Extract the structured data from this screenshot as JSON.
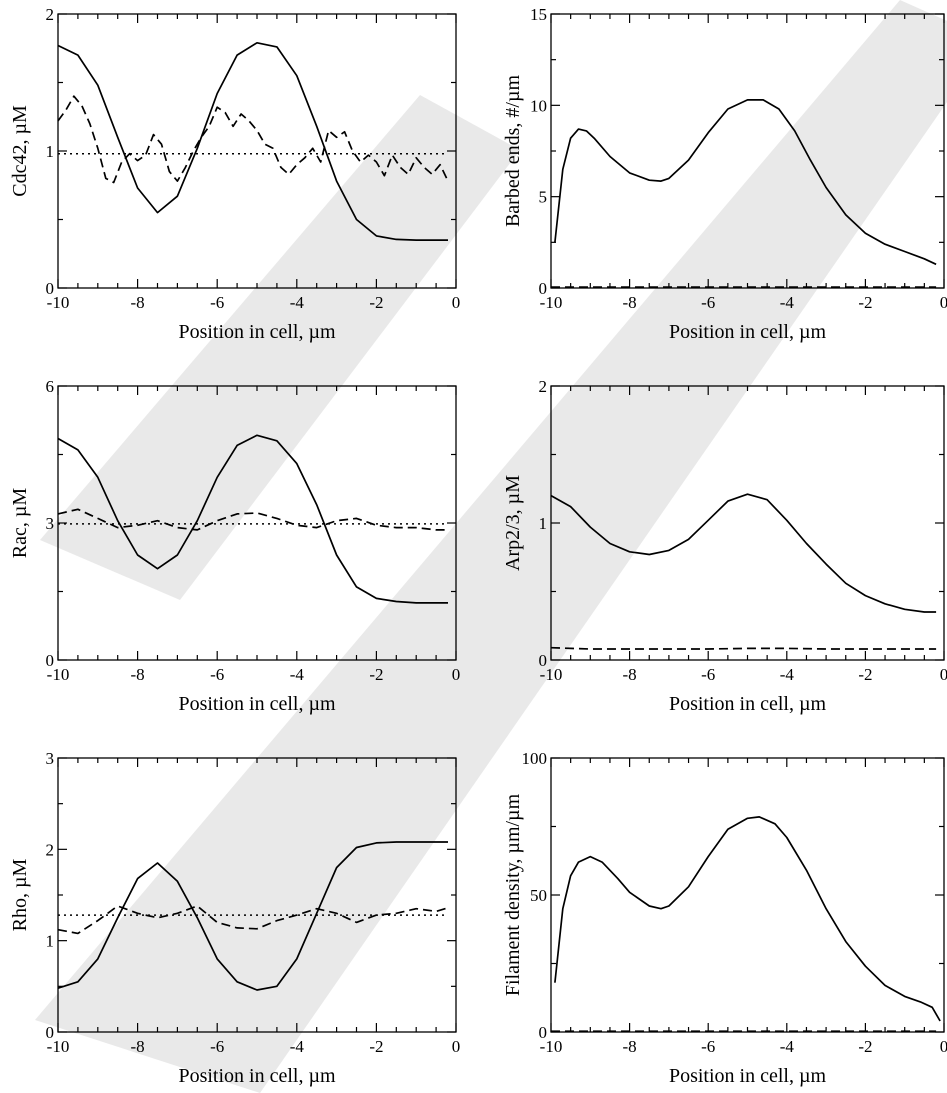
{
  "chart_data": [
    {
      "type": "line",
      "panel": "top-left",
      "xlabel": "Position in cell, µm",
      "ylabel": "Cdc42, µM",
      "xlim": [
        -10,
        0
      ],
      "ylim": [
        0,
        2
      ],
      "x_ticks": [
        -10,
        -8,
        -6,
        -4,
        -2,
        0
      ],
      "y_ticks": [
        0,
        1,
        2
      ],
      "series": [
        {
          "style": "solid",
          "x": [
            -10,
            -9.5,
            -9,
            -8.5,
            -8,
            -7.5,
            -7,
            -6.5,
            -6,
            -5.5,
            -5,
            -4.5,
            -4,
            -3.5,
            -3,
            -2.5,
            -2,
            -1.5,
            -1,
            -0.5,
            -0.2
          ],
          "y": [
            1.77,
            1.7,
            1.48,
            1.1,
            0.73,
            0.55,
            0.67,
            1.02,
            1.42,
            1.7,
            1.79,
            1.76,
            1.55,
            1.18,
            0.78,
            0.5,
            0.38,
            0.355,
            0.35,
            0.35,
            0.35
          ]
        },
        {
          "style": "dashed",
          "x": [
            -10,
            -9.8,
            -9.6,
            -9.4,
            -9.2,
            -9.0,
            -8.8,
            -8.6,
            -8.4,
            -8.2,
            -8.0,
            -7.8,
            -7.6,
            -7.4,
            -7.2,
            -7.0,
            -6.8,
            -6.6,
            -6.4,
            -6.2,
            -6.0,
            -5.8,
            -5.6,
            -5.4,
            -5.2,
            -5.0,
            -4.8,
            -4.6,
            -4.4,
            -4.2,
            -4.0,
            -3.8,
            -3.6,
            -3.4,
            -3.2,
            -3.0,
            -2.8,
            -2.6,
            -2.4,
            -2.2,
            -2.0,
            -1.8,
            -1.6,
            -1.4,
            -1.2,
            -1.0,
            -0.8,
            -0.6,
            -0.4,
            -0.2
          ],
          "y": [
            1.22,
            1.3,
            1.4,
            1.33,
            1.2,
            1.02,
            0.8,
            0.77,
            0.92,
            0.98,
            0.93,
            0.97,
            1.12,
            1.05,
            0.85,
            0.78,
            0.88,
            1.0,
            1.1,
            1.18,
            1.32,
            1.28,
            1.18,
            1.27,
            1.22,
            1.15,
            1.05,
            1.02,
            0.88,
            0.83,
            0.9,
            0.95,
            1.02,
            0.92,
            1.15,
            1.1,
            1.14,
            1.0,
            0.92,
            0.97,
            0.92,
            0.82,
            0.97,
            0.88,
            0.83,
            0.95,
            0.88,
            0.83,
            0.9,
            0.78
          ]
        },
        {
          "style": "dotted",
          "x": [
            -10,
            -0.2
          ],
          "y": [
            0.98,
            0.98
          ]
        }
      ]
    },
    {
      "type": "line",
      "panel": "top-right",
      "xlabel": "Position in cell, µm",
      "ylabel": "Barbed ends, #/µm",
      "xlim": [
        -10,
        0
      ],
      "ylim": [
        0,
        15
      ],
      "x_ticks": [
        -10,
        -8,
        -6,
        -4,
        -2,
        0
      ],
      "y_ticks": [
        0,
        5,
        10,
        15
      ],
      "series": [
        {
          "style": "solid",
          "x": [
            -9.9,
            -9.7,
            -9.5,
            -9.3,
            -9.1,
            -8.9,
            -8.5,
            -8.0,
            -7.5,
            -7.2,
            -7.0,
            -6.5,
            -6.0,
            -5.5,
            -5.0,
            -4.6,
            -4.2,
            -3.8,
            -3.4,
            -3.0,
            -2.5,
            -2.0,
            -1.5,
            -1.0,
            -0.5,
            -0.2
          ],
          "y": [
            2.5,
            6.5,
            8.2,
            8.7,
            8.6,
            8.2,
            7.2,
            6.3,
            5.9,
            5.85,
            6.0,
            7.0,
            8.5,
            9.8,
            10.3,
            10.3,
            9.8,
            8.6,
            7.0,
            5.5,
            4.0,
            3.0,
            2.4,
            2.0,
            1.6,
            1.3
          ]
        },
        {
          "style": "dashed",
          "x": [
            -10,
            -0.2
          ],
          "y": [
            0.05,
            0.05
          ]
        }
      ]
    },
    {
      "type": "line",
      "panel": "middle-left",
      "xlabel": "Position in cell, µm",
      "ylabel": "Rac, µM",
      "xlim": [
        -10,
        0
      ],
      "ylim": [
        0,
        6
      ],
      "x_ticks": [
        -10,
        -8,
        -6,
        -4,
        -2,
        0
      ],
      "y_ticks": [
        0,
        3,
        6
      ],
      "series": [
        {
          "style": "solid",
          "x": [
            -10,
            -9.5,
            -9,
            -8.5,
            -8,
            -7.5,
            -7,
            -6.5,
            -6,
            -5.5,
            -5,
            -4.5,
            -4,
            -3.5,
            -3,
            -2.5,
            -2,
            -1.5,
            -1,
            -0.5,
            -0.2
          ],
          "y": [
            4.85,
            4.6,
            4.0,
            3.05,
            2.3,
            2.0,
            2.3,
            3.05,
            4.0,
            4.7,
            4.92,
            4.8,
            4.3,
            3.4,
            2.3,
            1.6,
            1.35,
            1.28,
            1.25,
            1.25,
            1.25
          ]
        },
        {
          "style": "dashed",
          "x": [
            -10,
            -9.5,
            -9,
            -8.5,
            -8,
            -7.5,
            -7,
            -6.5,
            -6,
            -5.5,
            -5,
            -4.5,
            -4,
            -3.5,
            -3,
            -2.5,
            -2,
            -1.5,
            -1,
            -0.5,
            -0.2
          ],
          "y": [
            3.2,
            3.3,
            3.1,
            2.9,
            2.95,
            3.05,
            2.9,
            2.85,
            3.05,
            3.2,
            3.22,
            3.1,
            2.95,
            2.9,
            3.05,
            3.1,
            2.95,
            2.9,
            2.9,
            2.85,
            2.85
          ]
        },
        {
          "style": "dotted",
          "x": [
            -10,
            -0.2
          ],
          "y": [
            2.98,
            2.98
          ]
        }
      ]
    },
    {
      "type": "line",
      "panel": "middle-right",
      "xlabel": "Position in cell, µm",
      "ylabel": "Arp2/3, µM",
      "xlim": [
        -10,
        0
      ],
      "ylim": [
        0,
        2
      ],
      "x_ticks": [
        -10,
        -8,
        -6,
        -4,
        -2,
        0
      ],
      "y_ticks": [
        0,
        1,
        2
      ],
      "series": [
        {
          "style": "solid",
          "x": [
            -10,
            -9.5,
            -9,
            -8.5,
            -8,
            -7.5,
            -7,
            -6.5,
            -6,
            -5.5,
            -5,
            -4.5,
            -4,
            -3.5,
            -3,
            -2.5,
            -2,
            -1.5,
            -1,
            -0.5,
            -0.2
          ],
          "y": [
            1.2,
            1.12,
            0.97,
            0.85,
            0.79,
            0.77,
            0.8,
            0.88,
            1.02,
            1.16,
            1.21,
            1.17,
            1.02,
            0.85,
            0.7,
            0.56,
            0.47,
            0.41,
            0.37,
            0.35,
            0.35
          ]
        },
        {
          "style": "dashed",
          "x": [
            -10,
            -9.5,
            -9,
            -8,
            -7,
            -6,
            -5,
            -4,
            -3,
            -2,
            -1,
            -0.2
          ],
          "y": [
            0.09,
            0.085,
            0.08,
            0.08,
            0.08,
            0.08,
            0.085,
            0.085,
            0.08,
            0.08,
            0.08,
            0.08
          ]
        }
      ]
    },
    {
      "type": "line",
      "panel": "bottom-left",
      "xlabel": "Position in cell, µm",
      "ylabel": "Rho, µM",
      "xlim": [
        -10,
        0
      ],
      "ylim": [
        0,
        3
      ],
      "x_ticks": [
        -10,
        -8,
        -6,
        -4,
        -2,
        0
      ],
      "y_ticks": [
        0,
        1,
        2,
        3
      ],
      "series": [
        {
          "style": "solid",
          "x": [
            -10,
            -9.5,
            -9,
            -8.5,
            -8,
            -7.5,
            -7,
            -6.5,
            -6,
            -5.5,
            -5,
            -4.5,
            -4,
            -3.5,
            -3,
            -2.5,
            -2,
            -1.5,
            -1,
            -0.5,
            -0.2
          ],
          "y": [
            0.48,
            0.55,
            0.8,
            1.25,
            1.68,
            1.85,
            1.65,
            1.25,
            0.8,
            0.55,
            0.46,
            0.5,
            0.8,
            1.3,
            1.8,
            2.02,
            2.07,
            2.08,
            2.08,
            2.08,
            2.08
          ]
        },
        {
          "style": "dashed",
          "x": [
            -10,
            -9.5,
            -9,
            -8.5,
            -8,
            -7.5,
            -7,
            -6.5,
            -6,
            -5.5,
            -5,
            -4.5,
            -4,
            -3.5,
            -3,
            -2.5,
            -2,
            -1.5,
            -1,
            -0.5,
            -0.2
          ],
          "y": [
            1.12,
            1.08,
            1.22,
            1.38,
            1.3,
            1.25,
            1.3,
            1.38,
            1.2,
            1.14,
            1.13,
            1.22,
            1.28,
            1.35,
            1.3,
            1.2,
            1.28,
            1.3,
            1.35,
            1.32,
            1.36
          ]
        },
        {
          "style": "dotted",
          "x": [
            -10,
            -0.2
          ],
          "y": [
            1.28,
            1.28
          ]
        }
      ]
    },
    {
      "type": "line",
      "panel": "bottom-right",
      "xlabel": "Position in cell, µm",
      "ylabel": "Filament density, µm/µm",
      "xlim": [
        -10,
        0
      ],
      "ylim": [
        0,
        100
      ],
      "x_ticks": [
        -10,
        -8,
        -6,
        -4,
        -2,
        0
      ],
      "y_ticks": [
        0,
        50,
        100
      ],
      "series": [
        {
          "style": "solid",
          "x": [
            -9.9,
            -9.7,
            -9.5,
            -9.3,
            -9.0,
            -8.7,
            -8.3,
            -8.0,
            -7.5,
            -7.2,
            -7.0,
            -6.5,
            -6.0,
            -5.5,
            -5.0,
            -4.7,
            -4.3,
            -4.0,
            -3.5,
            -3.0,
            -2.5,
            -2.0,
            -1.5,
            -1.0,
            -0.6,
            -0.3,
            -0.1
          ],
          "y": [
            18,
            45,
            57,
            62,
            64,
            62,
            56,
            51,
            46,
            45,
            46,
            53,
            64,
            74,
            78,
            78.5,
            76,
            71,
            59,
            45,
            33,
            24,
            17,
            13,
            11,
            9,
            4
          ]
        },
        {
          "style": "dashed",
          "x": [
            -10,
            -0.2
          ],
          "y": [
            0.3,
            0.3
          ]
        }
      ]
    }
  ]
}
